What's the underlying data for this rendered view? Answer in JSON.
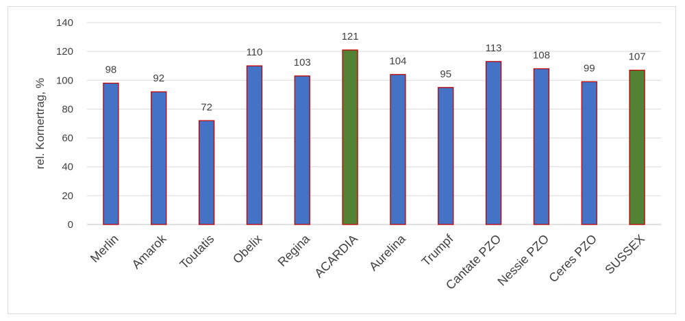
{
  "chart_data": {
    "type": "bar",
    "title": "",
    "xlabel": "",
    "ylabel": "rel. Kornertrag, %",
    "ylim": [
      0,
      140
    ],
    "yticks": [
      0,
      20,
      40,
      60,
      80,
      100,
      120,
      140
    ],
    "grid": true,
    "legend": "none",
    "categories": [
      "Merlin",
      "Amarok",
      "Toutatis",
      "Obelix",
      "Regina",
      "ACARDIA",
      "Aurelina",
      "Trumpf",
      "Cantate PZO",
      "Nessie PZO",
      "Ceres PZO",
      "SUSSEX"
    ],
    "values": [
      98,
      92,
      72,
      110,
      103,
      121,
      104,
      95,
      113,
      108,
      99,
      107
    ],
    "bar_colors": [
      "#4472c4",
      "#4472c4",
      "#4472c4",
      "#4472c4",
      "#4472c4",
      "#548235",
      "#4472c4",
      "#4472c4",
      "#4472c4",
      "#4472c4",
      "#4472c4",
      "#548235"
    ],
    "bar_outline_color": "#c00000",
    "data_labels": true
  }
}
